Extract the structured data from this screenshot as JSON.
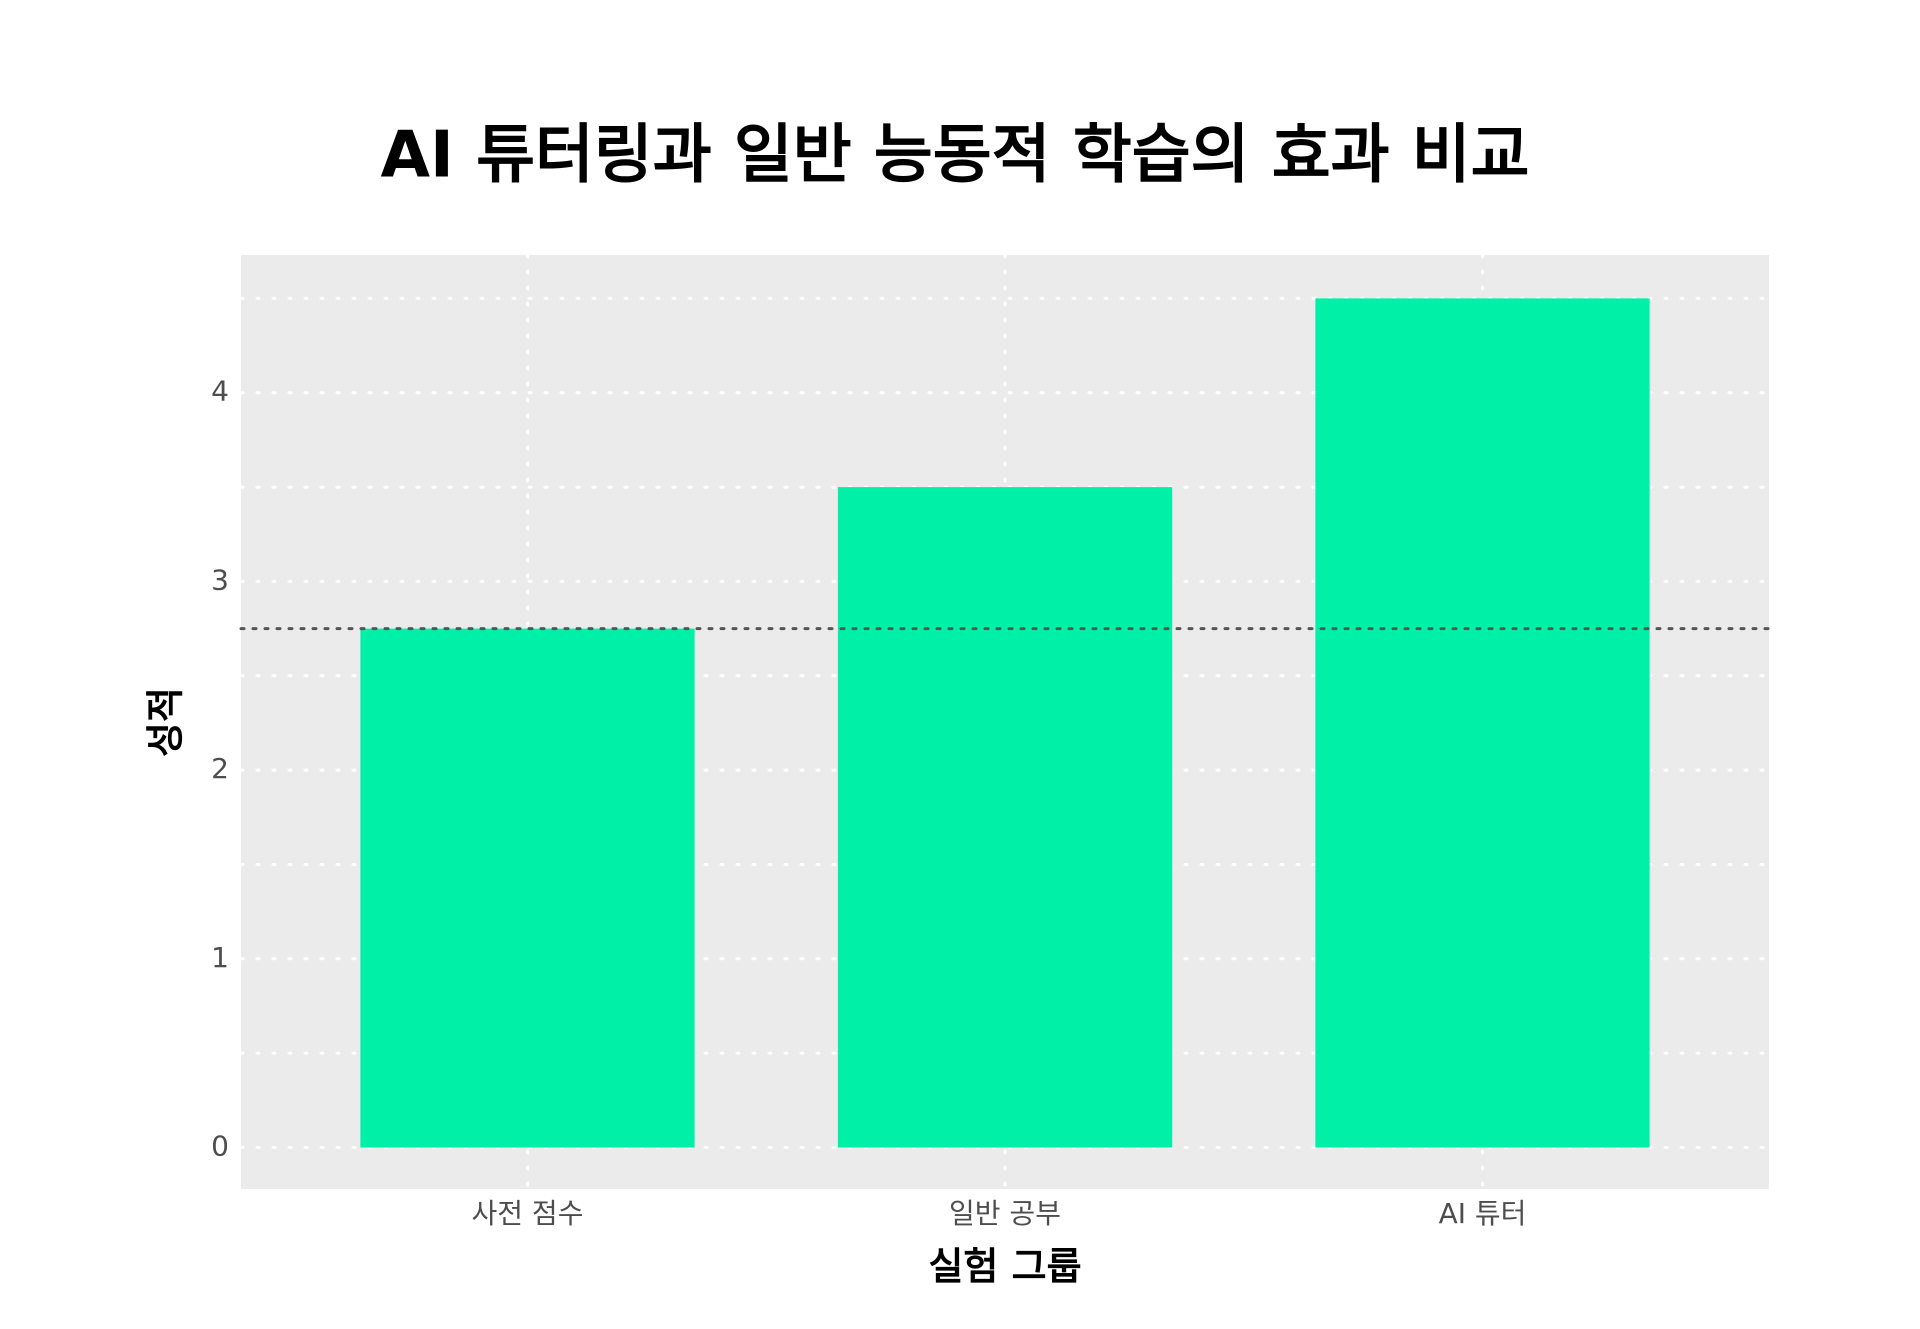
{
  "chart_data": {
    "type": "bar",
    "title": "AI 튜터링과 일반 능동적 학습의 효과 비교",
    "x_label": "실험 그룹",
    "y_label": "성적",
    "categories": [
      "사전 점수",
      "일반 공부",
      "AI 튜터"
    ],
    "values": [
      2.75,
      3.5,
      4.5
    ],
    "color": "#00f0a8",
    "ylim": [
      -0.22,
      4.73
    ],
    "yticks": [
      0,
      1,
      2,
      3,
      4
    ],
    "yminor": [
      0.5,
      1.5,
      2.5,
      3.5,
      4.5
    ],
    "hline": 2.75,
    "grid": true
  }
}
